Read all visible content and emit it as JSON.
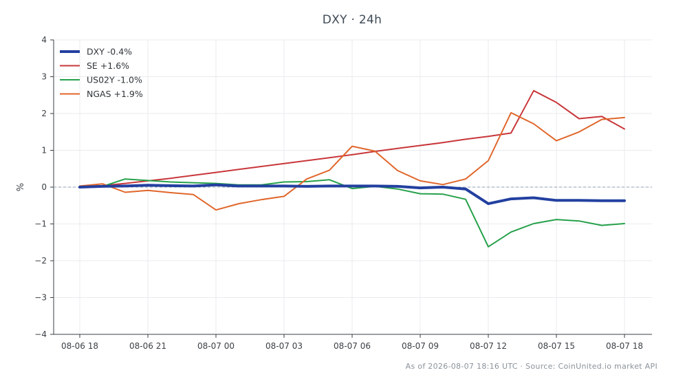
{
  "chart_data": {
    "type": "line",
    "title": "DXY · 24h",
    "ylabel": "%",
    "xlabel": "",
    "ylim": [
      -4,
      4
    ],
    "yticks": [
      4,
      3,
      2,
      1,
      0,
      -1,
      -2,
      -3,
      -4
    ],
    "ytick_labels": [
      "4",
      "3",
      "2",
      "1",
      "0",
      "−1",
      "−2",
      "−3",
      "−4"
    ],
    "x": [
      "08-06 18",
      "08-06 19",
      "08-06 20",
      "08-06 21",
      "08-06 22",
      "08-06 23",
      "08-07 00",
      "08-07 01",
      "08-07 02",
      "08-07 03",
      "08-07 04",
      "08-07 05",
      "08-07 06",
      "08-07 07",
      "08-07 08",
      "08-07 09",
      "08-07 10",
      "08-07 11",
      "08-07 12",
      "08-07 13",
      "08-07 14",
      "08-07 15",
      "08-07 16",
      "08-07 17",
      "08-07 18"
    ],
    "xtick_labels": [
      "08-06 18",
      "08-06 21",
      "08-07 00",
      "08-07 03",
      "08-07 06",
      "08-07 09",
      "08-07 12",
      "08-07 15",
      "08-07 18"
    ],
    "grid": true,
    "zero_line": true,
    "legend_position": "top-left",
    "series": [
      {
        "name": "DXY -0.4%",
        "color": "#2340a0",
        "width": 4,
        "values": [
          0.0,
          0.02,
          0.03,
          0.05,
          0.04,
          0.03,
          0.06,
          0.03,
          0.03,
          0.03,
          0.02,
          0.03,
          0.03,
          0.03,
          0.02,
          -0.02,
          0.0,
          -0.05,
          -0.45,
          -0.32,
          -0.29,
          -0.36,
          -0.36,
          -0.37,
          -0.37
        ]
      },
      {
        "name": "SE +1.6%",
        "color": "#c8363a",
        "width": 2,
        "values": [
          0.02,
          0.04,
          0.1,
          0.17,
          0.24,
          0.32,
          0.4,
          0.48,
          0.56,
          0.64,
          0.72,
          0.8,
          0.88,
          0.97,
          1.05,
          1.13,
          1.21,
          1.3,
          1.38,
          1.47,
          2.62,
          2.3,
          1.86,
          1.92,
          1.58
        ]
      },
      {
        "name": "US02Y -1.0%",
        "color": "#25a04a",
        "width": 2,
        "values": [
          0.0,
          0.02,
          0.22,
          0.18,
          0.14,
          0.12,
          0.1,
          0.06,
          0.06,
          0.14,
          0.15,
          0.2,
          -0.04,
          0.02,
          -0.05,
          -0.18,
          -0.19,
          -0.33,
          -1.62,
          -1.22,
          -0.99,
          -0.88,
          -0.92,
          -1.04,
          -0.99
        ]
      },
      {
        "name": "NGAS +1.9%",
        "color": "#e0662a",
        "width": 2,
        "values": [
          0.03,
          0.09,
          -0.14,
          -0.09,
          -0.15,
          -0.2,
          -0.62,
          -0.45,
          -0.34,
          -0.25,
          0.22,
          0.46,
          1.11,
          0.98,
          0.45,
          0.17,
          0.07,
          0.22,
          0.72,
          2.02,
          1.72,
          1.26,
          1.5,
          1.84,
          1.89
        ]
      }
    ]
  },
  "footer": "As of 2026-08-07 18:16 UTC · Source: CoinUnited.io market API"
}
